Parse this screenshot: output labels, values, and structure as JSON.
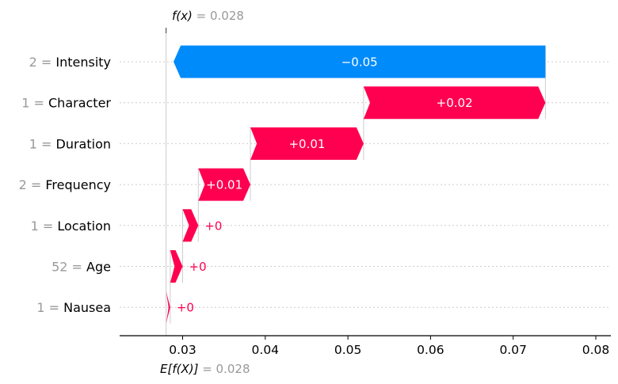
{
  "chart_data": {
    "type": "waterfall",
    "fx": {
      "label": "f(x)",
      "value_text": "= 0.028",
      "value": 0.028
    },
    "efx": {
      "label": "E[f(X)]",
      "value_text": "= 0.028",
      "value": 0.028
    },
    "features": [
      {
        "value": "2",
        "name": "Intensity",
        "contribution": -0.045,
        "label": "−0.05"
      },
      {
        "value": "1",
        "name": "Character",
        "contribution": 0.022,
        "label": "+0.02"
      },
      {
        "value": "1",
        "name": "Duration",
        "contribution": 0.0137,
        "label": "+0.01"
      },
      {
        "value": "2",
        "name": "Frequency",
        "contribution": 0.0063,
        "label": "+0.01"
      },
      {
        "value": "1",
        "name": "Location",
        "contribution": 0.0019,
        "label": "+0"
      },
      {
        "value": "52",
        "name": "Age",
        "contribution": 0.0015,
        "label": "+0"
      },
      {
        "value": "1",
        "name": "Nausea",
        "contribution": 0.0005,
        "label": "+0"
      }
    ],
    "xticks": [
      0.03,
      0.04,
      0.05,
      0.06,
      0.07,
      0.08
    ],
    "xtick_labels": [
      "0.03",
      "0.04",
      "0.05",
      "0.06",
      "0.07",
      "0.08"
    ],
    "xlim": [
      0.022,
      0.0812
    ],
    "colors": {
      "positive": "#ff0051",
      "negative": "#008bfb",
      "grid": "#cccccc",
      "muted": "#999999"
    }
  }
}
